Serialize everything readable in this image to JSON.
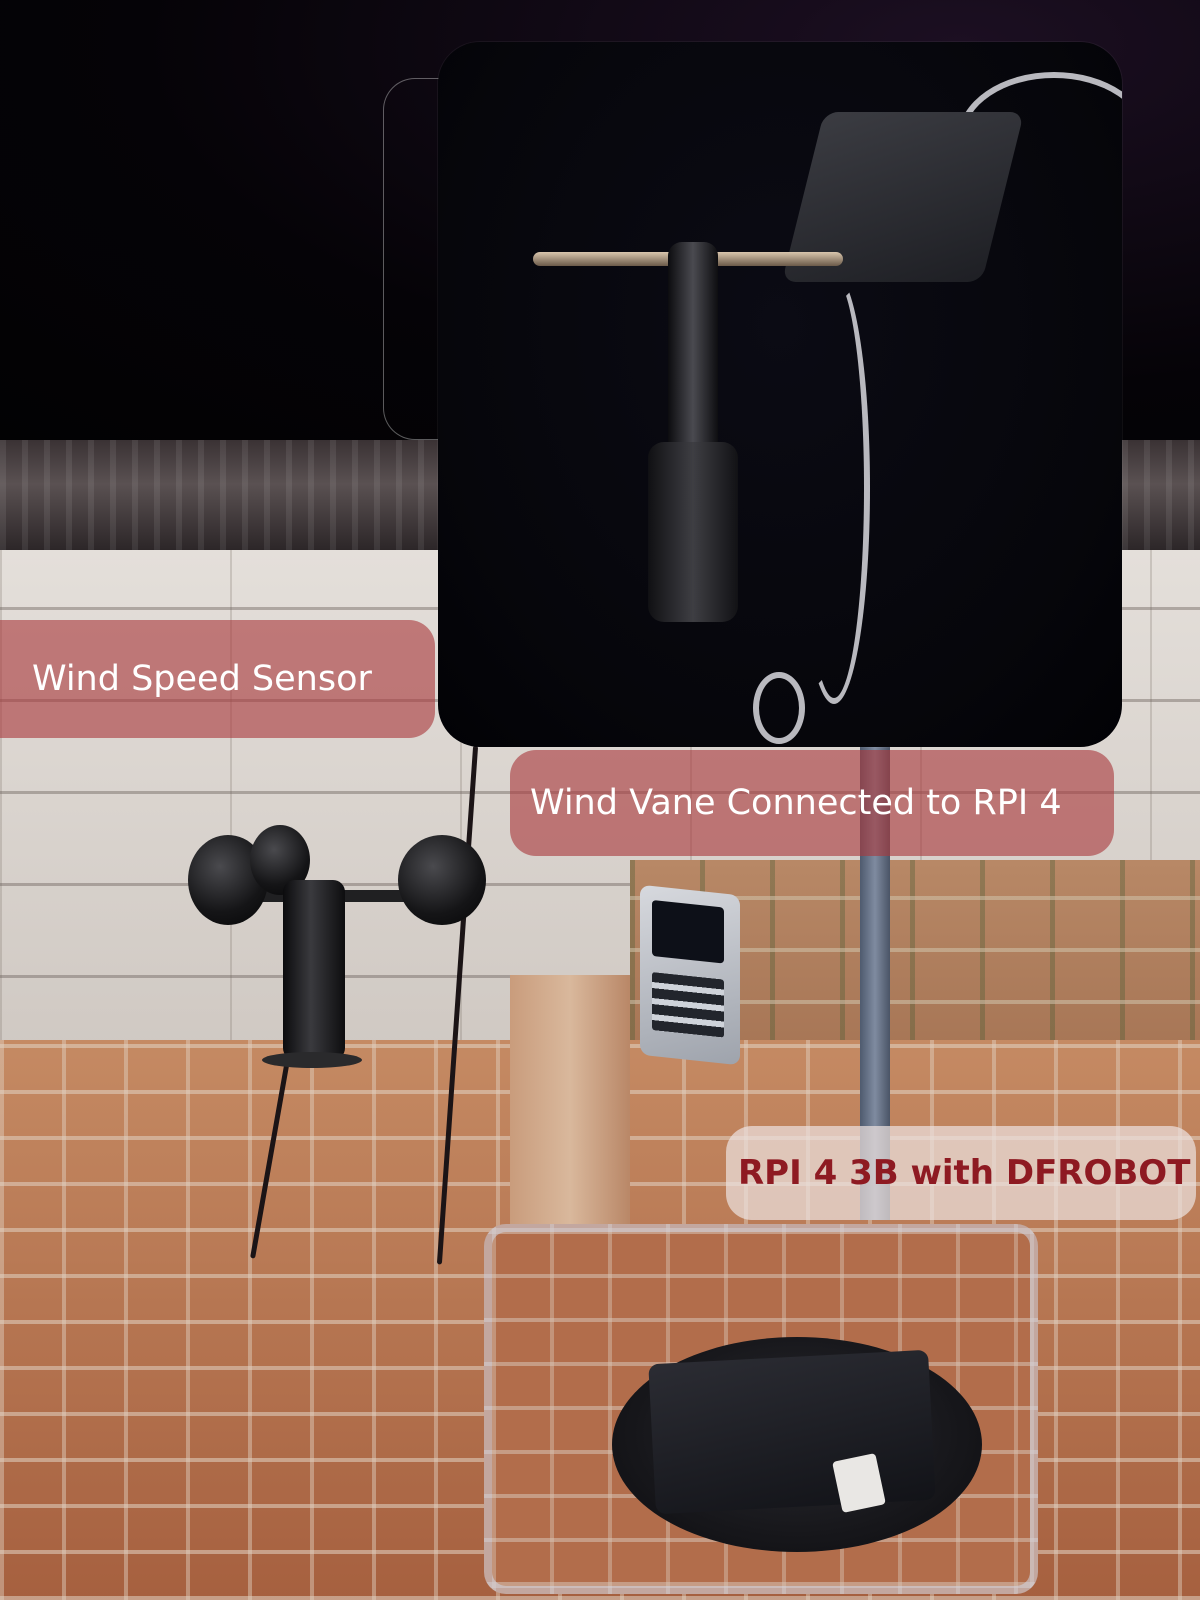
{
  "labels": {
    "wind_speed": "Wind Speed Sensor",
    "wind_vane": "Wind Vane Connected to RPI 4",
    "rpi": "RPI 4 3B with DFROBOT"
  },
  "colors": {
    "label_red": "#aa3a3e",
    "label_light": "#ebe1de",
    "rpi_text": "#8e1a22"
  }
}
